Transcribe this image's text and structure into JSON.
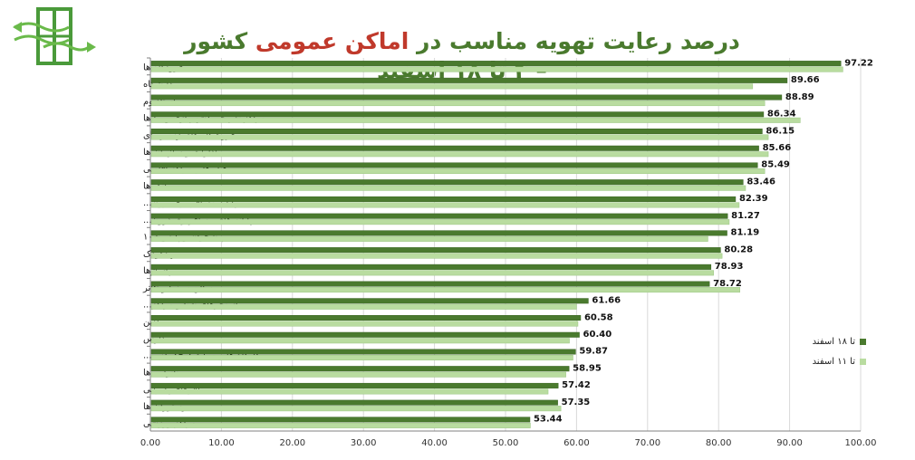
{
  "title": {
    "part1": "درصد رعایت تهویه مناسب در ",
    "part2": "اماکن عمومی",
    "part3": " کشور – ۴ تا ۱۸ اسفند"
  },
  "colors": {
    "dark": "#4a7a2e",
    "light": "#b9dca0",
    "title": "#4a7a2e",
    "accent": "#c0392b"
  },
  "chart_data": {
    "type": "bar",
    "orientation": "horizontal",
    "title": "درصد رعایت تهویه مناسب در اماکن عمومی کشور – ۴ تا ۱۸ اسفند",
    "categories": [
      "فرودگاه ها",
      "دانشگاه",
      "استادیوم",
      "مراکز تفریحی (شهربازی و...) ها",
      "فروشگاه های زنجیره ای",
      "ادارات و سازمان ها",
      "هتل ها و مراکز اقامتی",
      "بانک ها",
      "پایانه مسافر بری برون...",
      "پایانه های مسافربری درون...",
      "پیشخوان و پلیس+۱۰",
      "مهدکودک",
      "پاساژها",
      "سالن سینما و تئاتر",
      "استخرهای شنا و مراکز...",
      "میادین",
      "مدارس",
      "کارگاه ها و صنایع کوچک (زیر...",
      "نانوایی ها",
      "تالارهای پذیرایی",
      "رستوران ها",
      "مراکز ورزشی"
    ],
    "series": [
      {
        "name": "تا ۱۸ اسفند",
        "values": [
          97.22,
          89.66,
          88.89,
          86.34,
          86.15,
          85.66,
          85.49,
          83.46,
          82.39,
          81.27,
          81.19,
          80.28,
          78.93,
          78.72,
          61.66,
          60.58,
          60.4,
          59.87,
          58.95,
          57.42,
          57.35,
          53.44
        ]
      },
      {
        "name": "تا ۱۱ اسفند",
        "values": [
          97.5,
          84.8,
          86.5,
          91.5,
          87.0,
          87.0,
          86.5,
          83.8,
          82.9,
          81.5,
          78.5,
          80.5,
          79.3,
          83.0,
          60.0,
          60.2,
          59.0,
          59.5,
          58.5,
          56.0,
          57.8,
          53.5
        ]
      }
    ],
    "value_labels": [
      "97.22",
      "89.66",
      "88.89",
      "86.34",
      "86.15",
      "85.66",
      "85.49",
      "83.46",
      "82.39",
      "81.27",
      "81.19",
      "80.28",
      "78.93",
      "78.72",
      "61.66",
      "60.58",
      "60.40",
      "59.87",
      "58.95",
      "57.42",
      "57.35",
      "53.44"
    ],
    "x_ticks": [
      "0.00",
      "10.00",
      "20.00",
      "30.00",
      "40.00",
      "50.00",
      "60.00",
      "70.00",
      "80.00",
      "90.00",
      "100.00"
    ],
    "xlim": [
      0,
      100
    ],
    "grid": true,
    "legend_position": "right"
  }
}
